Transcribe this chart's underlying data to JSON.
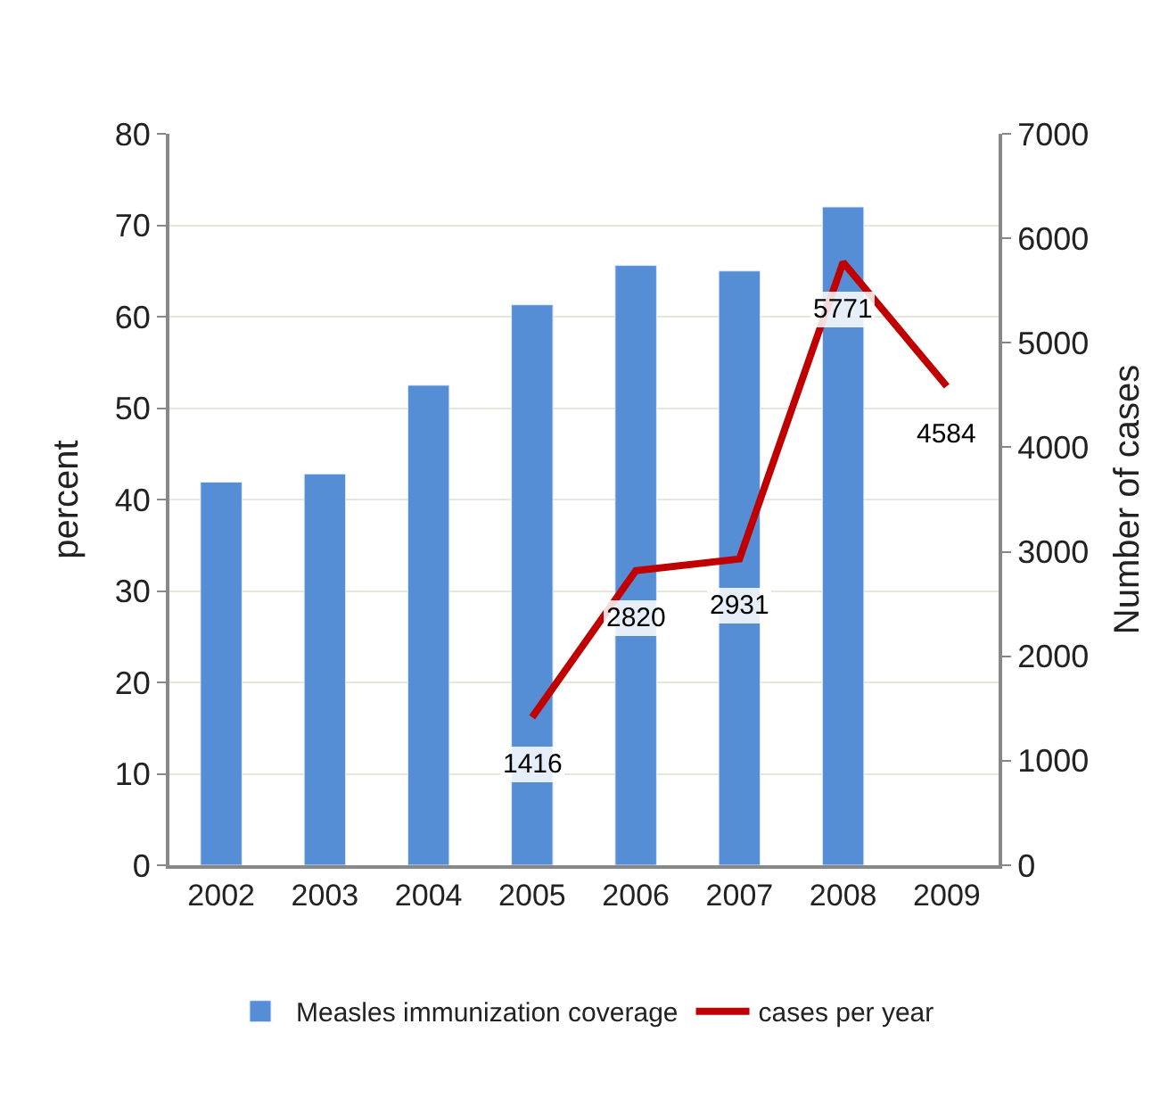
{
  "chart_data": {
    "type": "bar",
    "categories": [
      "2002",
      "2003",
      "2004",
      "2005",
      "2006",
      "2007",
      "2008",
      "2009"
    ],
    "ylabel": "percent",
    "y2label": "Number of cases",
    "ylim": [
      0,
      80
    ],
    "yticks": [
      0,
      10,
      20,
      30,
      40,
      50,
      60,
      70,
      80
    ],
    "y2lim": [
      0,
      7000
    ],
    "y2ticks": [
      0,
      1000,
      2000,
      3000,
      4000,
      5000,
      6000,
      7000
    ],
    "grid": "y",
    "legend": "bottom",
    "series": [
      {
        "name": "Measles immunization coverage",
        "color": "#558ed5",
        "values": [
          41.9,
          42.8,
          52.5,
          61.3,
          65.6,
          65.0,
          72.0,
          null
        ]
      },
      {
        "name": "cases per year",
        "type": "line",
        "axis": "y2",
        "color": "#c00000",
        "values": [
          null,
          null,
          null,
          1416,
          2820,
          2931,
          5771,
          4584
        ],
        "value_labels": [
          null,
          null,
          null,
          "1416",
          "2820",
          "2931",
          "5771",
          "4584"
        ]
      }
    ]
  }
}
